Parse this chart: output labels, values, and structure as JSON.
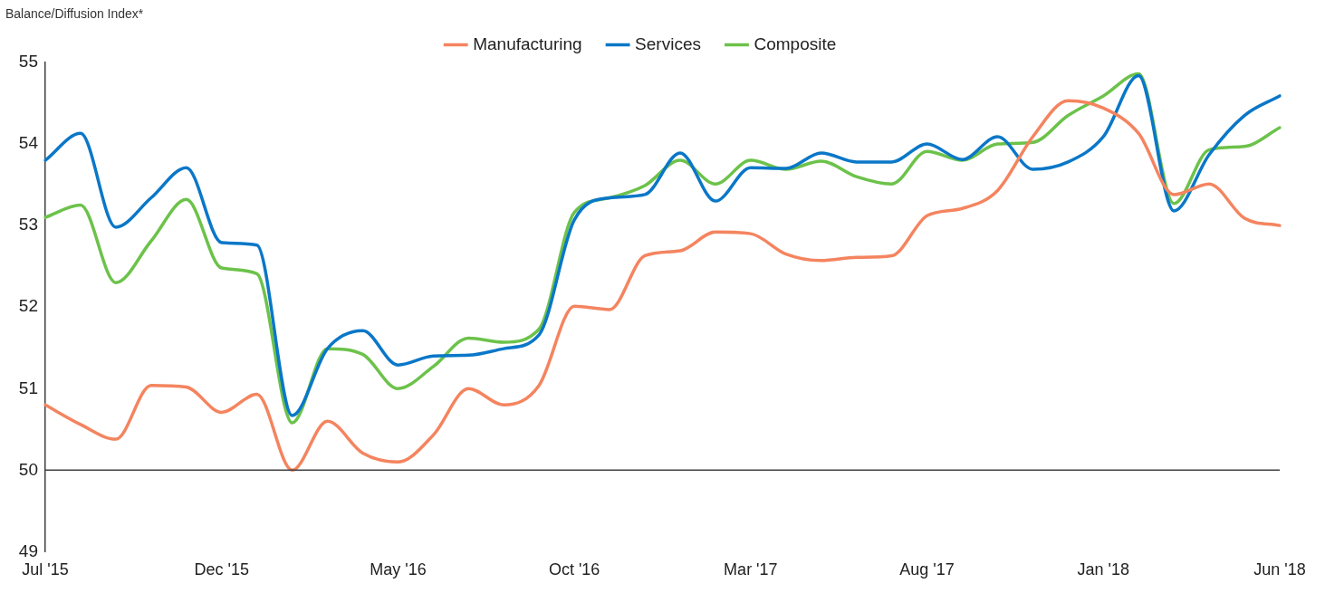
{
  "chart_data": {
    "type": "line",
    "ylabel": "Balance/Diffusion Index*",
    "categories": [
      "Jul '15",
      null,
      null,
      null,
      null,
      "Dec '15",
      null,
      null,
      null,
      null,
      "May '16",
      null,
      null,
      null,
      null,
      "Oct '16",
      null,
      null,
      null,
      null,
      "Mar '17",
      null,
      null,
      null,
      null,
      "Aug '17",
      null,
      null,
      null,
      null,
      "Jan '18",
      null,
      null,
      null,
      null,
      "Jun '18"
    ],
    "series": [
      {
        "name": "Manufacturing",
        "color": "#f4845f",
        "values": [
          50.8,
          50.56,
          50.38,
          51.04,
          51.02,
          50.71,
          50.93,
          50.0,
          50.6,
          50.21,
          50.1,
          50.43,
          51.0,
          50.8,
          51.04,
          52.01,
          51.97,
          52.63,
          52.69,
          52.92,
          52.9,
          52.65,
          52.57,
          52.61,
          52.63,
          53.12,
          53.21,
          53.43,
          54.09,
          54.53,
          54.44,
          54.13,
          53.38,
          53.51,
          53.09,
          53.0
        ]
      },
      {
        "name": "Services",
        "color": "#0a77c8",
        "values": [
          53.8,
          54.13,
          52.98,
          53.34,
          53.71,
          52.79,
          52.76,
          50.67,
          51.49,
          51.71,
          51.29,
          51.4,
          51.41,
          51.49,
          51.66,
          53.07,
          53.34,
          53.38,
          53.89,
          53.3,
          53.71,
          53.7,
          53.89,
          53.78,
          53.78,
          54.0,
          53.81,
          54.09,
          53.69,
          53.78,
          54.09,
          54.84,
          53.18,
          53.87,
          54.35,
          54.59
        ]
      },
      {
        "name": "Composite",
        "color": "#6cc24a",
        "values": [
          53.1,
          53.25,
          52.3,
          52.81,
          53.32,
          52.48,
          52.41,
          50.58,
          51.49,
          51.42,
          51.0,
          51.27,
          51.62,
          51.57,
          51.73,
          53.16,
          53.34,
          53.49,
          53.8,
          53.51,
          53.8,
          53.69,
          53.79,
          53.6,
          53.51,
          53.91,
          53.8,
          54.0,
          54.02,
          54.35,
          54.59,
          54.86,
          53.27,
          53.93,
          53.97,
          54.2
        ]
      }
    ],
    "ylim": [
      49,
      55
    ],
    "yticks": [
      49,
      50,
      51,
      52,
      53,
      54,
      55
    ],
    "ref_lines": [
      {
        "axis": "y",
        "value": 50,
        "color": "#404040"
      }
    ],
    "grid": false,
    "legend": "top",
    "marker": "none",
    "line_style": "solid"
  }
}
